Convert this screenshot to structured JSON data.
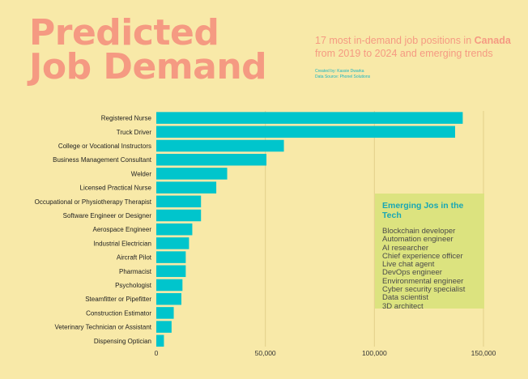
{
  "title_line1": "Predicted",
  "title_line2": "Job Demand",
  "subtitle_pre": "17 most in-demand job positions in ",
  "subtitle_highlight": "Canada",
  "subtitle_post": " from 2019 to 2024 and emerging trends",
  "credit_line1": "Created by: Kassie Dwarka",
  "credit_line2": "Data Source: Phonel Solutions",
  "colors": {
    "bar": "#00c5cc",
    "title": "#f59a82",
    "background": "#f8e9a8",
    "panel": "#dce37f",
    "panel_title": "#19a7b4"
  },
  "emerging": {
    "title": "Emerging Jos in the Tech",
    "items": [
      "Blockchain developer",
      "Automation engineer",
      "AI researcher",
      "Chief experience officer",
      "Live chat agent",
      "DevOps engineer",
      "Environmental engineer",
      "Cyber security specialist",
      "Data scientist",
      "3D architect"
    ]
  },
  "chart_data": {
    "type": "bar",
    "orientation": "horizontal",
    "categories": [
      "Registered Nurse",
      "Truck Driver",
      "College or Vocational Instructors",
      "Business Management Consultant",
      "Welder",
      "Licensed Practical Nurse",
      "Occupational or Physiotherapy Therapist",
      "Software Engineer or Designer",
      "Aerospace Engineer",
      "Industrial Electrician",
      "Aircraft Pilot",
      "Pharmacist",
      "Psychologist",
      "Steamfitter or Pipefitter",
      "Construction Estimator",
      "Veterinary Technician or Assistant",
      "Dispensing Optician"
    ],
    "values": [
      140500,
      137000,
      58500,
      50500,
      32500,
      27500,
      20500,
      20500,
      16500,
      15000,
      13500,
      13500,
      12000,
      11500,
      8000,
      7000,
      3500
    ],
    "xlim": [
      0,
      150000
    ],
    "xticks": [
      0,
      50000,
      100000,
      150000
    ],
    "xtick_labels": [
      "0",
      "50,000",
      "100,000",
      "150,000"
    ],
    "grid": true,
    "legend": "none"
  }
}
